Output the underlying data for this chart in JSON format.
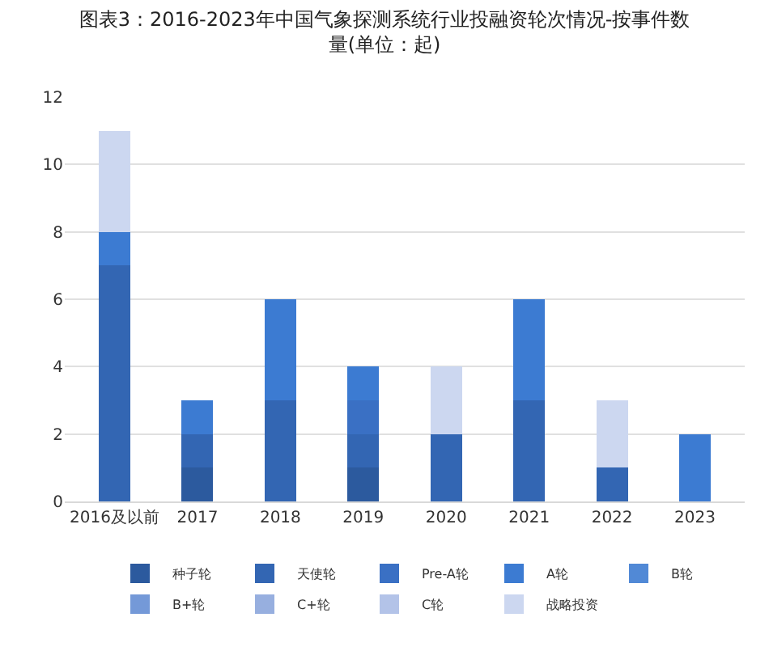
{
  "chart_data": {
    "type": "bar",
    "title": "图表3：2016-2023年中国气象探测系统行业投融资轮次情况-按事件数量(单位：起)",
    "categories": [
      "2016及以前",
      "2017",
      "2018",
      "2019",
      "2020",
      "2021",
      "2022",
      "2023"
    ],
    "stacked": true,
    "ylim": [
      0,
      12
    ],
    "yticks": [
      0,
      2,
      4,
      6,
      8,
      10,
      12
    ],
    "grid": "y",
    "legend": "bottom",
    "series": [
      {
        "name": "种子轮",
        "color": "#2c5a9e",
        "values": [
          0,
          1,
          0,
          1,
          0,
          0,
          0,
          0
        ]
      },
      {
        "name": "天使轮",
        "color": "#3366b3",
        "values": [
          7,
          1,
          3,
          1,
          2,
          3,
          1,
          0
        ]
      },
      {
        "name": "Pre-A轮",
        "color": "#3a70c4",
        "values": [
          0,
          0,
          0,
          1,
          0,
          0,
          0,
          0
        ]
      },
      {
        "name": "A轮",
        "color": "#3c7bd2",
        "values": [
          1,
          1,
          3,
          1,
          0,
          3,
          0,
          2
        ]
      },
      {
        "name": "B轮",
        "color": "#5189d6",
        "values": [
          0,
          0,
          0,
          0,
          0,
          0,
          0,
          0
        ]
      },
      {
        "name": "B+轮",
        "color": "#7499d8",
        "values": [
          0,
          0,
          0,
          0,
          0,
          0,
          0,
          0
        ]
      },
      {
        "name": "C+轮",
        "color": "#97afdf",
        "values": [
          0,
          0,
          0,
          0,
          0,
          0,
          0,
          0
        ]
      },
      {
        "name": "C轮",
        "color": "#b3c3e8",
        "values": [
          0,
          0,
          0,
          0,
          0,
          0,
          0,
          0
        ]
      },
      {
        "name": "战略投资",
        "color": "#ccd7f0",
        "values": [
          3,
          0,
          0,
          0,
          2,
          0,
          2,
          0
        ]
      }
    ]
  }
}
